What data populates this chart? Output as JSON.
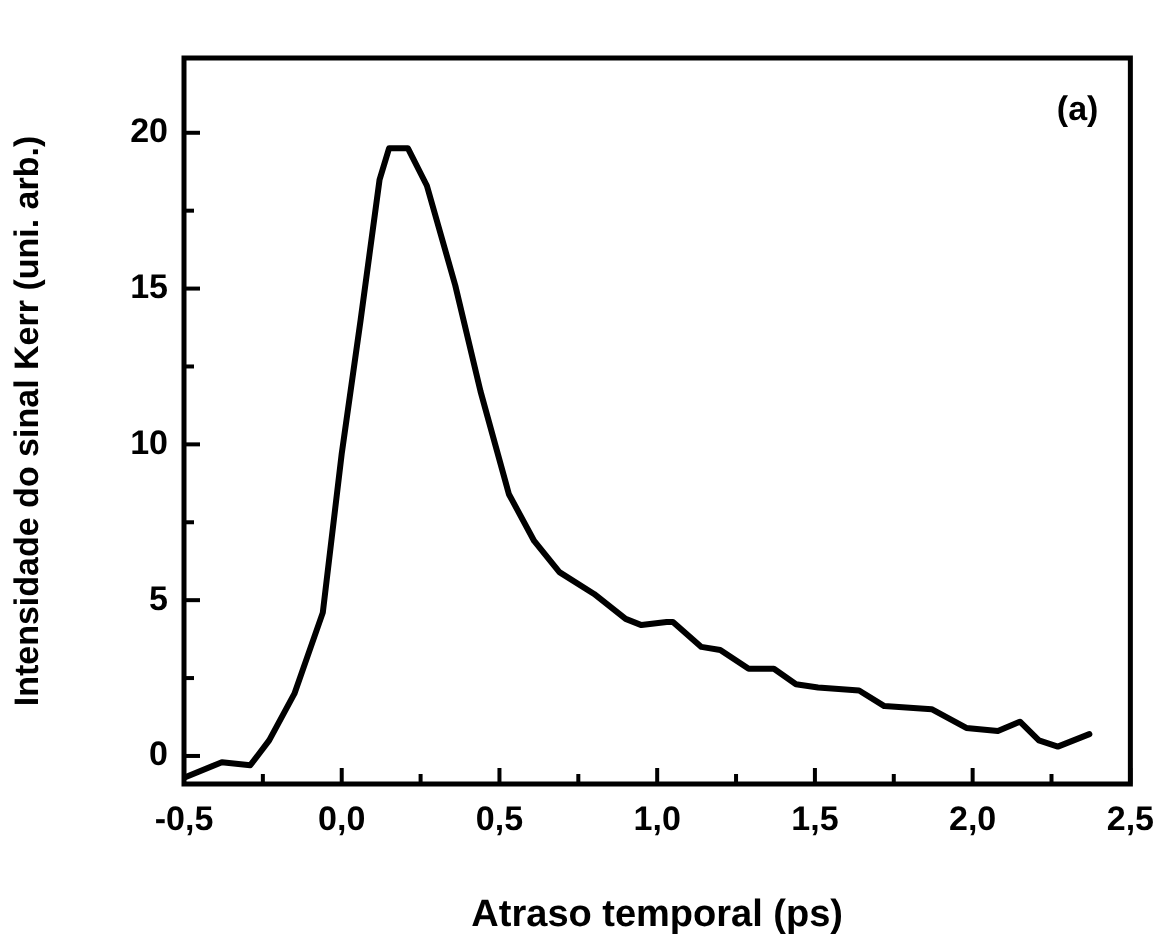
{
  "chart_data": {
    "type": "line",
    "xlabel": "Atraso temporal (ps)",
    "ylabel": "Intensidade do sinal Kerr (uni. arb.)",
    "annotations": [
      "(a)"
    ],
    "x": [
      -0.5,
      -0.38,
      -0.29,
      -0.23,
      -0.15,
      -0.06,
      0.0,
      0.06,
      0.12,
      0.15,
      0.21,
      0.27,
      0.36,
      0.44,
      0.53,
      0.61,
      0.69,
      0.8,
      0.9,
      0.95,
      1.03,
      1.05,
      1.14,
      1.2,
      1.29,
      1.37,
      1.44,
      1.51,
      1.64,
      1.72,
      1.87,
      1.98,
      2.08,
      2.15,
      2.21,
      2.27,
      2.37
    ],
    "series": [
      {
        "color": "#000000",
        "values": [
          -0.7,
          -0.2,
          -0.3,
          0.5,
          2.0,
          4.6,
          9.7,
          14.0,
          18.5,
          19.5,
          19.5,
          18.3,
          15.1,
          11.7,
          8.4,
          6.9,
          5.9,
          5.2,
          4.4,
          4.2,
          4.3,
          4.3,
          3.5,
          3.4,
          2.8,
          2.8,
          2.3,
          2.2,
          2.1,
          1.6,
          1.5,
          0.9,
          0.8,
          1.1,
          0.5,
          0.3,
          0.7
        ]
      }
    ],
    "xlim": [
      -0.5,
      2.5
    ],
    "ylim": [
      -0.9,
      22.4
    ],
    "xticks": [
      {
        "value": -0.5,
        "label": "-0,5"
      },
      {
        "value": -0.25,
        "label": null
      },
      {
        "value": 0,
        "label": "0,0"
      },
      {
        "value": 0.25,
        "label": null
      },
      {
        "value": 0.5,
        "label": "0,5"
      },
      {
        "value": 0.75,
        "label": null
      },
      {
        "value": 1,
        "label": "1,0"
      },
      {
        "value": 1.25,
        "label": null
      },
      {
        "value": 1.5,
        "label": "1,5"
      },
      {
        "value": 1.75,
        "label": null
      },
      {
        "value": 2,
        "label": "2,0"
      },
      {
        "value": 2.25,
        "label": null
      },
      {
        "value": 2.5,
        "label": "2,5"
      }
    ],
    "yticks": [
      0,
      {
        "value": 2.5,
        "label": null
      },
      5,
      {
        "value": 7.5,
        "label": null
      },
      10,
      {
        "value": 12.5,
        "label": null
      },
      15,
      {
        "value": 17.5,
        "label": null
      },
      20
    ],
    "grid": false,
    "legend": false,
    "marker": "none",
    "line_style": "solid"
  }
}
